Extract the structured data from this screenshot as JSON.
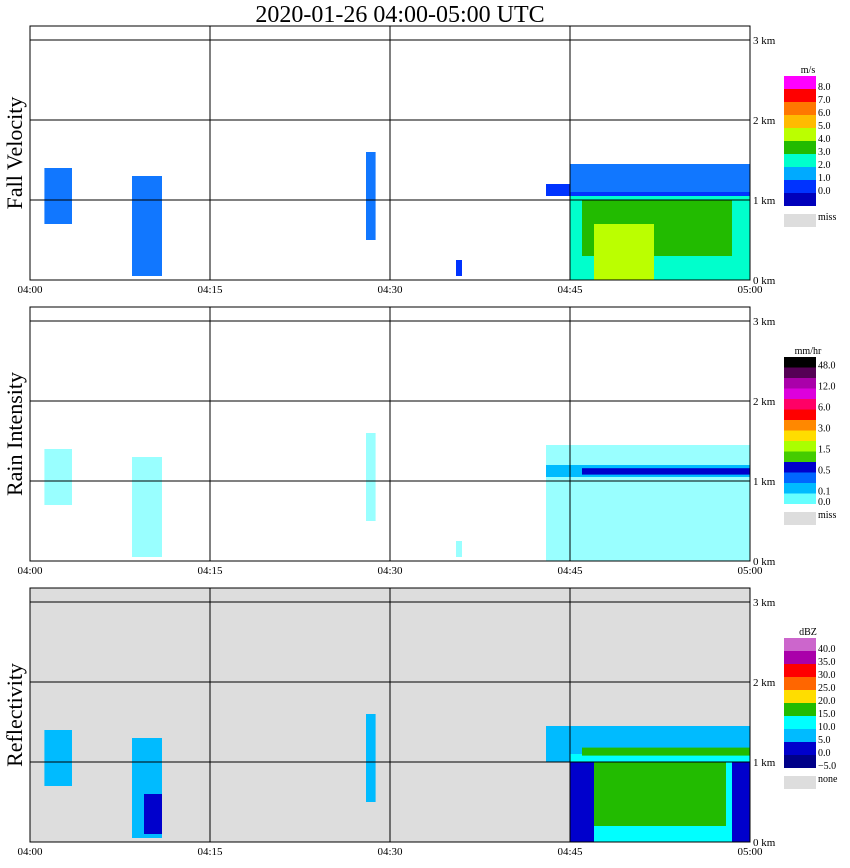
{
  "title": "2020-01-26  04:00-05:00 UTC",
  "colors": {
    "grid": "#000000",
    "missing_background": "#dddddd",
    "echo_light_cyan": "#99ffff"
  },
  "chart_data": [
    {
      "type": "heatmap",
      "ylabel": "Fall Velocity",
      "x_ticks": [
        "04:00",
        "04:15",
        "04:30",
        "04:45",
        "05:00"
      ],
      "y_ticks": [
        "0 km",
        "1 km",
        "2 km",
        "3 km"
      ],
      "ylim": [
        0,
        3
      ],
      "grid": true,
      "legend_placement": "right",
      "background": "white",
      "colorbar": {
        "unit": "m/s",
        "labels": [
          "8.0",
          "7.0",
          "6.0",
          "5.0",
          "4.0",
          "3.0",
          "2.0",
          "1.0",
          "0.0"
        ],
        "colors": [
          "#ff00ff",
          "#ff0000",
          "#ff7700",
          "#ffbb00",
          "#bbff00",
          "#22bb00",
          "#00ffcc",
          "#00aaff",
          "#0033ff",
          "#0000bb"
        ],
        "miss_label": "miss",
        "miss_color": "#dddddd"
      },
      "echoes": [
        {
          "t": [
            1.2,
            3.5
          ],
          "h": [
            0.7,
            1.4
          ],
          "color": "#1177ff"
        },
        {
          "t": [
            8.5,
            11.0
          ],
          "h": [
            0.05,
            1.3
          ],
          "color": "#1177ff"
        },
        {
          "t": [
            28.0,
            28.8
          ],
          "h": [
            0.5,
            1.6
          ],
          "color": "#1177ff"
        },
        {
          "t": [
            35.5,
            36.0
          ],
          "h": [
            0.05,
            0.25
          ],
          "color": "#0033ff"
        },
        {
          "t": [
            43.0,
            60.0
          ],
          "h": [
            1.05,
            1.2
          ],
          "color": "#0033ff"
        },
        {
          "t": [
            45.0,
            60.0
          ],
          "h": [
            1.1,
            1.45
          ],
          "color": "#1177ff"
        },
        {
          "t": [
            45.0,
            60.0
          ],
          "h": [
            0.0,
            1.05
          ],
          "color": "#00ffcc"
        },
        {
          "t": [
            46.0,
            58.5
          ],
          "h": [
            0.3,
            1.0
          ],
          "color": "#22bb00"
        },
        {
          "t": [
            47.0,
            52.0
          ],
          "h": [
            0.0,
            0.7
          ],
          "color": "#bbff00"
        }
      ]
    },
    {
      "type": "heatmap",
      "ylabel": "Rain Intensity",
      "x_ticks": [
        "04:00",
        "04:15",
        "04:30",
        "04:45",
        "05:00"
      ],
      "y_ticks": [
        "0 km",
        "1 km",
        "2 km",
        "3 km"
      ],
      "ylim": [
        0,
        3
      ],
      "grid": true,
      "legend_placement": "right",
      "background": "white",
      "colorbar": {
        "unit": "mm/hr",
        "labels": [
          "48.0",
          "",
          "12.0",
          "",
          "6.0",
          "",
          "3.0",
          "",
          "1.5",
          "",
          "0.5",
          "",
          "0.1",
          "0.0"
        ],
        "colors": [
          "#000000",
          "#550055",
          "#aa00aa",
          "#dd00dd",
          "#ff0066",
          "#ff0000",
          "#ff8800",
          "#ffdd00",
          "#aaff00",
          "#44cc00",
          "#0000cc",
          "#0066ff",
          "#00bbff",
          "#66ffff"
        ],
        "miss_label": "miss",
        "miss_color": "#dddddd"
      },
      "echoes": [
        {
          "t": [
            1.2,
            3.5
          ],
          "h": [
            0.7,
            1.4
          ],
          "color": "#99ffff"
        },
        {
          "t": [
            8.5,
            11.0
          ],
          "h": [
            0.05,
            1.3
          ],
          "color": "#99ffff"
        },
        {
          "t": [
            28.0,
            28.8
          ],
          "h": [
            0.5,
            1.6
          ],
          "color": "#99ffff"
        },
        {
          "t": [
            35.5,
            36.0
          ],
          "h": [
            0.05,
            0.25
          ],
          "color": "#99ffff"
        },
        {
          "t": [
            43.0,
            60.0
          ],
          "h": [
            0.0,
            1.45
          ],
          "color": "#99ffff"
        },
        {
          "t": [
            43.0,
            60.0
          ],
          "h": [
            1.05,
            1.2
          ],
          "color": "#00bbff"
        },
        {
          "t": [
            46.0,
            60.0
          ],
          "h": [
            1.08,
            1.16
          ],
          "color": "#0000cc"
        }
      ]
    },
    {
      "type": "heatmap",
      "ylabel": "Reflectivity",
      "x_ticks": [
        "04:00",
        "04:15",
        "04:30",
        "04:45",
        "05:00"
      ],
      "y_ticks": [
        "0 km",
        "1 km",
        "2 km",
        "3 km"
      ],
      "ylim": [
        0,
        3
      ],
      "grid": true,
      "legend_placement": "right",
      "background": "missing",
      "colorbar": {
        "unit": "dBZ",
        "labels": [
          "40.0",
          "35.0",
          "30.0",
          "25.0",
          "20.0",
          "15.0",
          "10.0",
          "5.0",
          "0.0",
          "−5.0"
        ],
        "colors": [
          "#cc66cc",
          "#aa00aa",
          "#ff0000",
          "#ff6600",
          "#ffdd00",
          "#22bb00",
          "#00ffff",
          "#00bbff",
          "#0000cc",
          "#000088"
        ],
        "miss_label": "none",
        "miss_color": "#dddddd"
      },
      "echoes": [
        {
          "t": [
            1.2,
            3.5
          ],
          "h": [
            0.7,
            1.4
          ],
          "color": "#00bbff"
        },
        {
          "t": [
            8.5,
            11.0
          ],
          "h": [
            0.05,
            1.3
          ],
          "color": "#00bbff"
        },
        {
          "t": [
            9.5,
            11.0
          ],
          "h": [
            0.1,
            0.6
          ],
          "color": "#0000cc"
        },
        {
          "t": [
            28.0,
            28.8
          ],
          "h": [
            0.5,
            1.6
          ],
          "color": "#00bbff"
        },
        {
          "t": [
            43.0,
            60.0
          ],
          "h": [
            1.0,
            1.45
          ],
          "color": "#00bbff"
        },
        {
          "t": [
            45.0,
            60.0
          ],
          "h": [
            0.0,
            1.1
          ],
          "color": "#00ffff"
        },
        {
          "t": [
            46.5,
            58.0
          ],
          "h": [
            0.2,
            1.0
          ],
          "color": "#22bb00"
        },
        {
          "t": [
            46.0,
            60.0
          ],
          "h": [
            1.08,
            1.18
          ],
          "color": "#22bb00"
        },
        {
          "t": [
            45.0,
            47.0
          ],
          "h": [
            0.0,
            1.0
          ],
          "color": "#0000cc"
        },
        {
          "t": [
            58.5,
            60.0
          ],
          "h": [
            0.0,
            1.0
          ],
          "color": "#0000cc"
        }
      ]
    }
  ]
}
